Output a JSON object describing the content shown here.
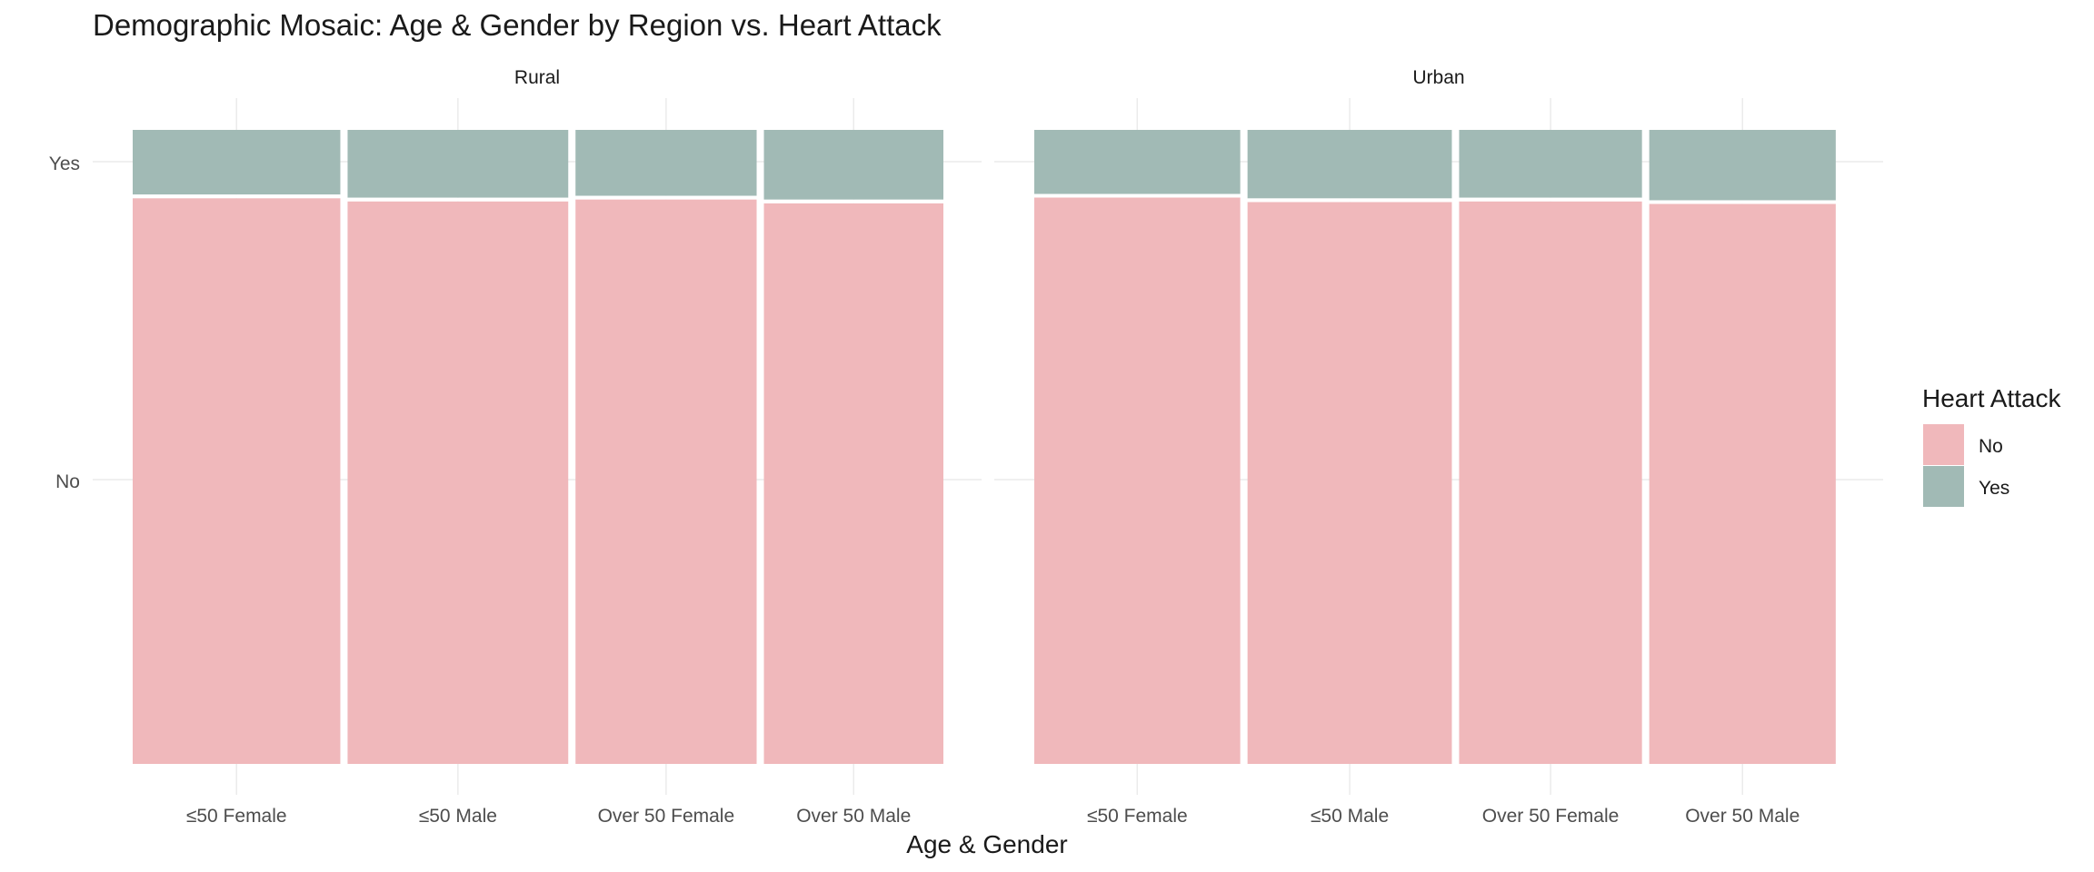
{
  "chart_data": {
    "type": "mosaic",
    "title": "Demographic Mosaic: Age & Gender by Region vs. Heart Attack",
    "xlabel": "Age & Gender",
    "ylabel": "",
    "y_tick_labels": [
      "No",
      "Yes"
    ],
    "facets": [
      {
        "name": "Rural",
        "categories": [
          "≤50 Female",
          "≤50 Male",
          "Over 50 Female",
          "Over 50 Male"
        ],
        "widths": [
          0.2632,
          0.2797,
          0.2296,
          0.2275
        ],
        "series": [
          {
            "name": "No",
            "values": [
              0.898,
              0.893,
              0.896,
              0.89
            ]
          },
          {
            "name": "Yes",
            "values": [
              0.102,
              0.107,
              0.104,
              0.11
            ]
          }
        ]
      },
      {
        "name": "Urban",
        "categories": [
          "≤50 Female",
          "≤50 Male",
          "Over 50 Female",
          "Over 50 Male"
        ],
        "widths": [
          0.2611,
          0.259,
          0.2318,
          0.2364
        ],
        "series": [
          {
            "name": "No",
            "values": [
              0.899,
              0.892,
              0.893,
              0.889
            ]
          },
          {
            "name": "Yes",
            "values": [
              0.101,
              0.108,
              0.107,
              0.111
            ]
          }
        ]
      }
    ],
    "legend": {
      "title": "Heart Attack",
      "position": "right",
      "items": [
        {
          "label": "No",
          "color": "#f0b8bb"
        },
        {
          "label": "Yes",
          "color": "#a1bab5"
        }
      ]
    },
    "grid": true
  },
  "colors": {
    "no": "#f0b8bb",
    "yes": "#a1bab5",
    "grid": "#ebebeb",
    "text": "#4d4d4d",
    "title": "#1a1a1a",
    "separator": "#ffffff"
  }
}
